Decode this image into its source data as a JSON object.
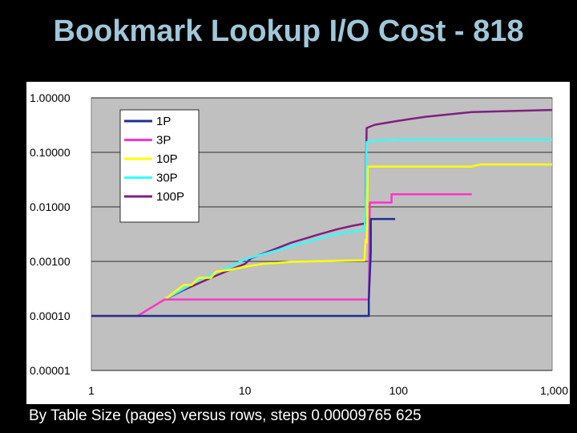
{
  "slide": {
    "title": "Bookmark Lookup I/O Cost - 818",
    "caption": "By Table Size (pages) versus rows, steps 0.00009765 625"
  },
  "chart_data": {
    "type": "line",
    "title": "",
    "xlabel": "",
    "ylabel": "",
    "x_scale": "log",
    "y_scale": "log",
    "xlim": [
      1,
      1000
    ],
    "ylim": [
      1e-05,
      1
    ],
    "x_ticks": [
      1,
      10,
      100,
      1000
    ],
    "x_tick_labels": [
      "1",
      "10",
      "100",
      "1,000"
    ],
    "y_ticks": [
      1,
      0.1,
      0.01,
      0.001,
      0.0001,
      1e-05
    ],
    "y_tick_labels": [
      "1.00000",
      "0.10000",
      "0.01000",
      "0.00100",
      "0.00010",
      "0.00001"
    ],
    "plot_background": "#c0c0c0",
    "grid": "horizontal",
    "legend_position": "top-left",
    "series": [
      {
        "name": "1P",
        "color": "#1f2f8f",
        "points": [
          [
            1,
            0.0001
          ],
          [
            64,
            0.0001
          ],
          [
            64,
            0.0002
          ],
          [
            66,
            0.0015
          ],
          [
            66,
            0.006
          ],
          [
            95,
            0.006
          ]
        ]
      },
      {
        "name": "3P",
        "color": "#ff33cc",
        "points": [
          [
            1,
            0.0001
          ],
          [
            2,
            0.0001
          ],
          [
            3,
            0.0002
          ],
          [
            64,
            0.0002
          ],
          [
            64.5,
            0.0012
          ],
          [
            65,
            0.012
          ],
          [
            90,
            0.012
          ],
          [
            90,
            0.017
          ],
          [
            300,
            0.017
          ]
        ]
      },
      {
        "name": "10P",
        "color": "#ffff00",
        "points": [
          [
            1,
            0.0001
          ],
          [
            2,
            0.0001
          ],
          [
            3,
            0.0002
          ],
          [
            4,
            0.00037
          ],
          [
            4.5,
            0.00037
          ],
          [
            5,
            0.0005
          ],
          [
            6,
            0.0005
          ],
          [
            6.5,
            0.00065
          ],
          [
            8,
            0.0007
          ],
          [
            10,
            0.0008
          ],
          [
            13,
            0.0009
          ],
          [
            20,
            0.00098
          ],
          [
            40,
            0.00103
          ],
          [
            60,
            0.00105
          ],
          [
            61,
            0.0025
          ],
          [
            62,
            0.0022
          ],
          [
            62.5,
            0.006
          ],
          [
            63,
            0.055
          ],
          [
            300,
            0.055
          ],
          [
            340,
            0.06
          ],
          [
            1000,
            0.06
          ]
        ]
      },
      {
        "name": "30P",
        "color": "#33ffff",
        "points": [
          [
            1,
            0.0001
          ],
          [
            2,
            0.0001
          ],
          [
            3,
            0.0002
          ],
          [
            5,
            0.00045
          ],
          [
            8,
            0.0008
          ],
          [
            10,
            0.0011
          ],
          [
            15,
            0.0015
          ],
          [
            20,
            0.0019
          ],
          [
            30,
            0.0026
          ],
          [
            40,
            0.0032
          ],
          [
            60,
            0.0038
          ],
          [
            61,
            0.009
          ],
          [
            62,
            0.155
          ],
          [
            70,
            0.165
          ],
          [
            100,
            0.17
          ],
          [
            1000,
            0.17
          ]
        ]
      },
      {
        "name": "100P",
        "color": "#7f1f7f",
        "points": [
          [
            1,
            0.0001
          ],
          [
            2,
            0.0001
          ],
          [
            3,
            0.0002
          ],
          [
            4,
            0.0003
          ],
          [
            6,
            0.0005
          ],
          [
            8,
            0.0007
          ],
          [
            10,
            0.0009
          ],
          [
            11,
            0.00115
          ],
          [
            15,
            0.0016
          ],
          [
            20,
            0.0022
          ],
          [
            30,
            0.0031
          ],
          [
            40,
            0.0039
          ],
          [
            50,
            0.0045
          ],
          [
            61,
            0.005
          ],
          [
            61,
            0.02
          ],
          [
            62,
            0.28
          ],
          [
            70,
            0.32
          ],
          [
            100,
            0.38
          ],
          [
            150,
            0.45
          ],
          [
            300,
            0.55
          ],
          [
            1000,
            0.6
          ]
        ]
      }
    ]
  }
}
